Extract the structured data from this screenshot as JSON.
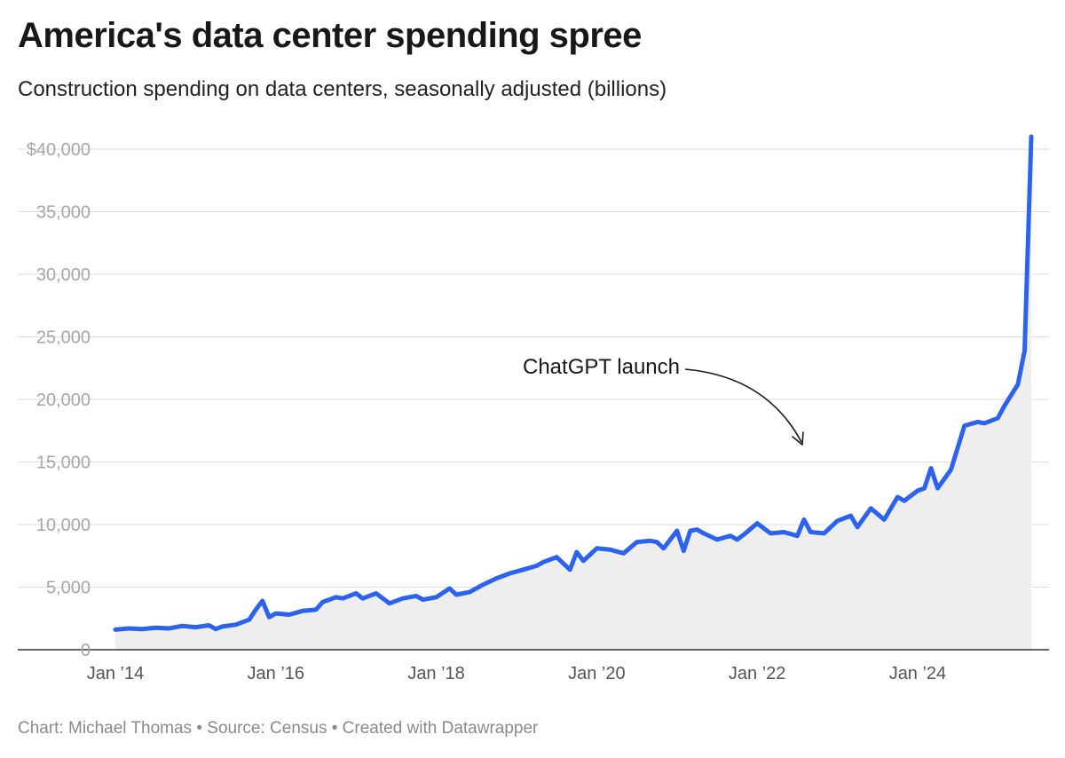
{
  "header": {
    "title": "America's data center spending spree",
    "subtitle": "Construction spending on data centers, seasonally adjusted (billions)"
  },
  "footer": {
    "credit": "Chart: Michael Thomas • Source: Census • Created with Datawrapper"
  },
  "colors": {
    "line": "#2b63f0",
    "area": "#eeeeee",
    "grid": "#dddddd",
    "axis": "#333333"
  },
  "chart_data": {
    "type": "area",
    "title": "America's data center spending spree",
    "subtitle": "Construction spending on data centers, seasonally adjusted (billions)",
    "xlabel": "",
    "ylabel": "",
    "ylim": [
      0,
      40000
    ],
    "x_start": "2014-01",
    "x_end": "2025-06",
    "y_ticks": [
      {
        "value": 0,
        "label": "0"
      },
      {
        "value": 5000,
        "label": "5,000"
      },
      {
        "value": 10000,
        "label": "10,000"
      },
      {
        "value": 15000,
        "label": "15,000"
      },
      {
        "value": 20000,
        "label": "20,000"
      },
      {
        "value": 25000,
        "label": "25,000"
      },
      {
        "value": 30000,
        "label": "30,000"
      },
      {
        "value": 35000,
        "label": "35,000"
      },
      {
        "value": 40000,
        "label": "$40,000"
      }
    ],
    "x_ticks": [
      {
        "x": "2014-01",
        "label": "Jan ’14"
      },
      {
        "x": "2016-01",
        "label": "Jan ’16"
      },
      {
        "x": "2018-01",
        "label": "Jan ’18"
      },
      {
        "x": "2020-01",
        "label": "Jan ’20"
      },
      {
        "x": "2022-01",
        "label": "Jan ’22"
      },
      {
        "x": "2024-01",
        "label": "Jan ’24"
      }
    ],
    "annotation": {
      "text": "ChatGPT launch",
      "x": "2022-11"
    },
    "series": [
      {
        "name": "Construction spending on data centers",
        "points": [
          [
            "2014-01",
            1600
          ],
          [
            "2014-03",
            1700
          ],
          [
            "2014-05",
            1650
          ],
          [
            "2014-07",
            1750
          ],
          [
            "2014-09",
            1700
          ],
          [
            "2014-11",
            1900
          ],
          [
            "2015-01",
            1800
          ],
          [
            "2015-03",
            1950
          ],
          [
            "2015-04",
            1650
          ],
          [
            "2015-05",
            1850
          ],
          [
            "2015-07",
            2000
          ],
          [
            "2015-09",
            2400
          ],
          [
            "2015-10",
            3200
          ],
          [
            "2015-11",
            3900
          ],
          [
            "2015-12",
            2600
          ],
          [
            "2016-01",
            2900
          ],
          [
            "2016-03",
            2800
          ],
          [
            "2016-05",
            3100
          ],
          [
            "2016-07",
            3200
          ],
          [
            "2016-08",
            3800
          ],
          [
            "2016-10",
            4200
          ],
          [
            "2016-11",
            4100
          ],
          [
            "2017-01",
            4500
          ],
          [
            "2017-02",
            4100
          ],
          [
            "2017-04",
            4500
          ],
          [
            "2017-06",
            3700
          ],
          [
            "2017-08",
            4100
          ],
          [
            "2017-10",
            4300
          ],
          [
            "2017-11",
            4000
          ],
          [
            "2018-01",
            4200
          ],
          [
            "2018-03",
            4900
          ],
          [
            "2018-04",
            4400
          ],
          [
            "2018-06",
            4600
          ],
          [
            "2018-08",
            5200
          ],
          [
            "2018-10",
            5700
          ],
          [
            "2018-12",
            6100
          ],
          [
            "2019-02",
            6400
          ],
          [
            "2019-04",
            6700
          ],
          [
            "2019-05",
            7000
          ],
          [
            "2019-07",
            7400
          ],
          [
            "2019-09",
            6400
          ],
          [
            "2019-10",
            7800
          ],
          [
            "2019-11",
            7100
          ],
          [
            "2020-01",
            8100
          ],
          [
            "2020-03",
            8000
          ],
          [
            "2020-05",
            7700
          ],
          [
            "2020-07",
            8600
          ],
          [
            "2020-09",
            8700
          ],
          [
            "2020-10",
            8600
          ],
          [
            "2020-11",
            8100
          ],
          [
            "2021-01",
            9500
          ],
          [
            "2021-02",
            7900
          ],
          [
            "2021-03",
            9500
          ],
          [
            "2021-04",
            9600
          ],
          [
            "2021-05",
            9300
          ],
          [
            "2021-07",
            8800
          ],
          [
            "2021-09",
            9100
          ],
          [
            "2021-10",
            8800
          ],
          [
            "2021-11",
            9200
          ],
          [
            "2022-01",
            10100
          ],
          [
            "2022-03",
            9300
          ],
          [
            "2022-05",
            9400
          ],
          [
            "2022-07",
            9100
          ],
          [
            "2022-08",
            10400
          ],
          [
            "2022-09",
            9400
          ],
          [
            "2022-11",
            9300
          ],
          [
            "2023-01",
            10300
          ],
          [
            "2023-03",
            10700
          ],
          [
            "2023-04",
            9800
          ],
          [
            "2023-06",
            11300
          ],
          [
            "2023-08",
            10400
          ],
          [
            "2023-10",
            12200
          ],
          [
            "2023-11",
            11900
          ],
          [
            "2024-01",
            12700
          ],
          [
            "2024-02",
            12900
          ],
          [
            "2024-03",
            14500
          ],
          [
            "2024-04",
            12900
          ],
          [
            "2024-06",
            14400
          ],
          [
            "2024-08",
            17900
          ],
          [
            "2024-10",
            18200
          ],
          [
            "2024-11",
            18100
          ],
          [
            "2025-01",
            18500
          ],
          [
            "2025-02",
            19500
          ],
          [
            "2025-04",
            21200
          ],
          [
            "2025-05",
            23900
          ],
          [
            "2025-06",
            41000
          ]
        ]
      }
    ]
  }
}
